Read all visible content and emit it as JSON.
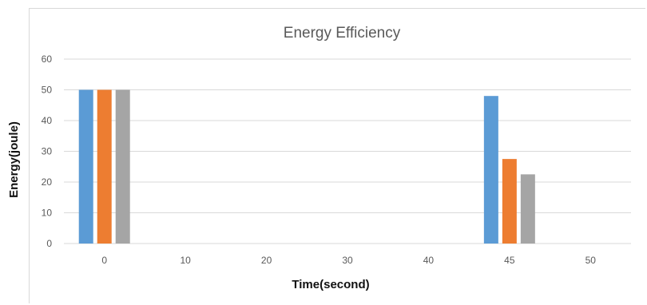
{
  "chart_data": {
    "type": "bar",
    "title": "Energy Efficiency",
    "xlabel": "Time(second)",
    "ylabel": "Energy(joule)",
    "categories": [
      "0",
      "10",
      "20",
      "30",
      "40",
      "45",
      "50"
    ],
    "series": [
      {
        "values": [
          50,
          0,
          0,
          0,
          0,
          48,
          0
        ],
        "color": "#5b9bd5"
      },
      {
        "values": [
          50,
          0,
          0,
          0,
          0,
          27.5,
          0
        ],
        "color": "#ed7d31"
      },
      {
        "values": [
          50,
          0,
          0,
          0,
          0,
          22.5,
          0
        ],
        "color": "#a5a5a5"
      }
    ],
    "ylim": [
      0,
      60
    ],
    "yticks": [
      "0",
      "10",
      "20",
      "30",
      "40",
      "50",
      "60"
    ],
    "grid": true,
    "legend": "none"
  }
}
